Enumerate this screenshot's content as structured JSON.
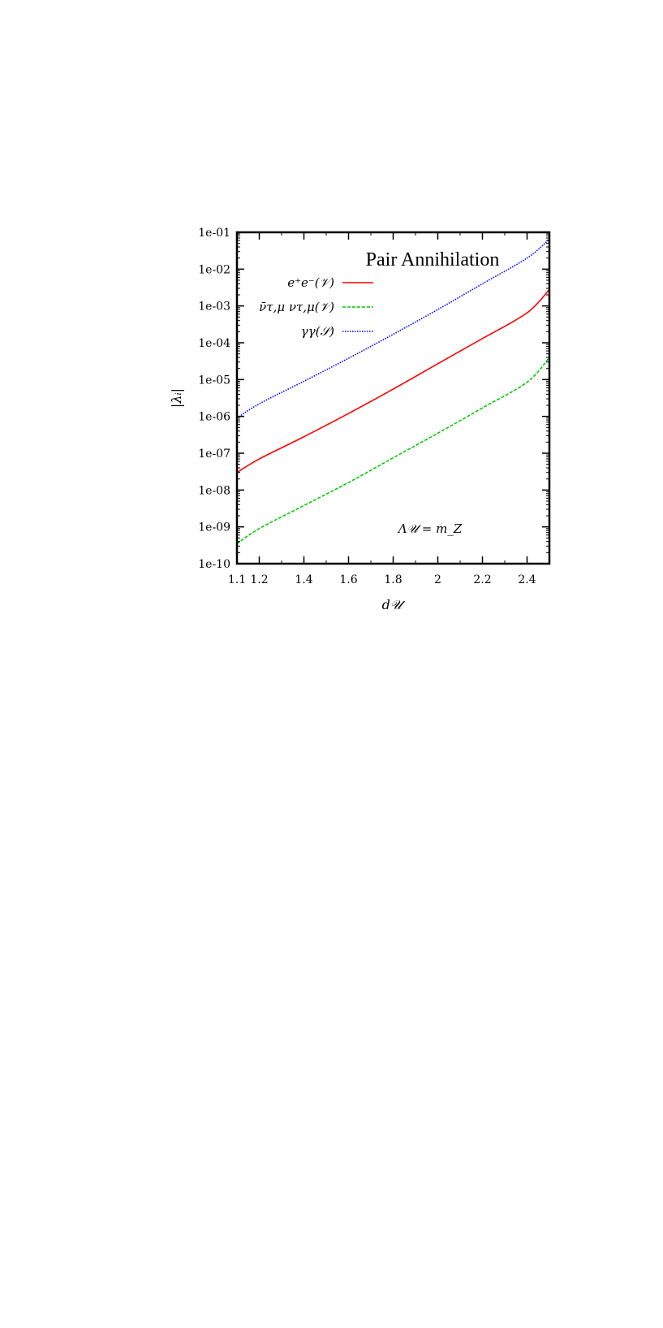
{
  "chart_data": {
    "type": "line",
    "title": "Pair Annihilation",
    "xlabel": "d𝒰",
    "ylabel": "|λᵢ|",
    "xlim": [
      1.1,
      2.5
    ],
    "ylim": [
      1e-10,
      0.1
    ],
    "yscale": "log",
    "grid": false,
    "legend_position": "top-left",
    "annotation": "Λ𝒰 = m_Z",
    "x_ticks": [
      1.1,
      1.2,
      1.4,
      1.6,
      1.8,
      2,
      2.2,
      2.4
    ],
    "x_tick_labels": [
      "1.1",
      "1.2",
      "1.4",
      "1.6",
      "1.8",
      "2",
      "2.2",
      "2.4"
    ],
    "y_ticks": [
      1e-10,
      1e-09,
      1e-08,
      1e-07,
      1e-06,
      1e-05,
      0.0001,
      0.001,
      0.01,
      0.1
    ],
    "y_tick_labels": [
      "1e-10",
      "1e-09",
      "1e-08",
      "1e-07",
      "1e-06",
      "1e-05",
      "1e-04",
      "1e-03",
      "1e-02",
      "1e-01"
    ],
    "x": [
      1.1,
      1.2,
      1.4,
      1.6,
      1.8,
      2.0,
      2.2,
      2.4,
      2.5
    ],
    "series": [
      {
        "name": "e⁺e⁻(𝒱)",
        "color": "#ff0000",
        "style": "solid",
        "values": [
          3e-08,
          7e-08,
          2.8e-07,
          1.2e-06,
          5.5e-06,
          2.7e-05,
          0.00013,
          0.00065,
          0.0028
        ]
      },
      {
        "name": "ν̄τ,μ ντ,μ(𝒱)",
        "color": "#00cc00",
        "style": "dashed",
        "values": [
          3.5e-10,
          9e-10,
          3.8e-09,
          1.6e-08,
          7.5e-08,
          3.5e-07,
          1.7e-06,
          8.5e-06,
          4e-05
        ]
      },
      {
        "name": "γγ(𝒮)",
        "color": "#0000ff",
        "style": "dotted",
        "values": [
          9e-07,
          2.2e-06,
          9e-06,
          3.8e-05,
          0.00017,
          0.0008,
          0.004,
          0.02,
          0.065
        ]
      }
    ]
  }
}
